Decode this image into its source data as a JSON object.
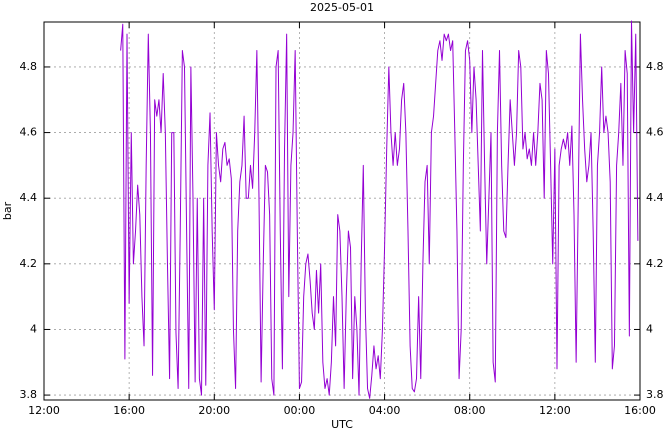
{
  "chart_data": {
    "type": "line",
    "title": "2025-05-01",
    "xlabel": "UTC",
    "ylabel": "bar",
    "color": "#9400d3",
    "grid": true,
    "xlim": [
      0,
      28
    ],
    "xticks": [
      {
        "value": 0,
        "label": "12:00"
      },
      {
        "value": 4,
        "label": "16:00"
      },
      {
        "value": 8,
        "label": "20:00"
      },
      {
        "value": 12,
        "label": "00:00"
      },
      {
        "value": 16,
        "label": "04:00"
      },
      {
        "value": 20,
        "label": "08:00"
      },
      {
        "value": 24,
        "label": "12:00"
      },
      {
        "value": 28,
        "label": "16:00"
      }
    ],
    "ylim": [
      3.785,
      4.937
    ],
    "yticks": [
      3.8,
      4,
      4.2,
      4.4,
      4.6,
      4.8
    ],
    "x": [
      3.6,
      3.7,
      3.8,
      3.9,
      4.0,
      4.1,
      4.2,
      4.3,
      4.4,
      4.5,
      4.6,
      4.7,
      4.8,
      4.9,
      5.0,
      5.1,
      5.2,
      5.3,
      5.4,
      5.5,
      5.6,
      5.7,
      5.8,
      5.9,
      6.0,
      6.1,
      6.2,
      6.3,
      6.4,
      6.5,
      6.6,
      6.7,
      6.8,
      6.9,
      7.0,
      7.1,
      7.2,
      7.3,
      7.4,
      7.5,
      7.6,
      7.7,
      7.8,
      7.9,
      8.0,
      8.1,
      8.2,
      8.3,
      8.4,
      8.5,
      8.6,
      8.7,
      8.8,
      8.9,
      9.0,
      9.1,
      9.2,
      9.3,
      9.4,
      9.5,
      9.6,
      9.7,
      9.8,
      9.9,
      10.0,
      10.1,
      10.2,
      10.3,
      10.4,
      10.5,
      10.6,
      10.7,
      10.8,
      10.9,
      11.0,
      11.1,
      11.2,
      11.3,
      11.4,
      11.5,
      11.6,
      11.7,
      11.8,
      11.9,
      12.0,
      12.1,
      12.2,
      12.3,
      12.4,
      12.5,
      12.6,
      12.7,
      12.8,
      12.9,
      13.0,
      13.1,
      13.2,
      13.3,
      13.4,
      13.5,
      13.6,
      13.7,
      13.8,
      13.9,
      14.0,
      14.1,
      14.2,
      14.3,
      14.4,
      14.5,
      14.6,
      14.7,
      14.8,
      14.9,
      15.0,
      15.1,
      15.2,
      15.3,
      15.4,
      15.5,
      15.6,
      15.7,
      15.8,
      15.9,
      16.0,
      16.1,
      16.2,
      16.3,
      16.4,
      16.5,
      16.6,
      16.7,
      16.8,
      16.9,
      17.0,
      17.1,
      17.2,
      17.3,
      17.4,
      17.5,
      17.6,
      17.7,
      17.8,
      17.9,
      18.0,
      18.1,
      18.2,
      18.3,
      18.4,
      18.5,
      18.6,
      18.7,
      18.8,
      18.9,
      19.0,
      19.1,
      19.2,
      19.3,
      19.4,
      19.5,
      19.6,
      19.7,
      19.8,
      19.9,
      20.0,
      20.1,
      20.2,
      20.3,
      20.4,
      20.5,
      20.6,
      20.7,
      20.8,
      20.9,
      21.0,
      21.1,
      21.2,
      21.3,
      21.4,
      21.5,
      21.6,
      21.7,
      21.8,
      21.9,
      22.0,
      22.1,
      22.2,
      22.3,
      22.4,
      22.5,
      22.6,
      22.7,
      22.8,
      22.9,
      23.0,
      23.1,
      23.2,
      23.3,
      23.4,
      23.5,
      23.6,
      23.7,
      23.8,
      23.9,
      24.0,
      24.1,
      24.2,
      24.3,
      24.4,
      24.5,
      24.6,
      24.7,
      24.8,
      24.9,
      25.0,
      25.1,
      25.2,
      25.3,
      25.4,
      25.5,
      25.6,
      25.7,
      25.8,
      25.9,
      26.0,
      26.1,
      26.2,
      26.3,
      26.4,
      26.5,
      26.6,
      26.7,
      26.8,
      26.9,
      27.0,
      27.1,
      27.2,
      27.3,
      27.4,
      27.5,
      27.6,
      27.7,
      27.8,
      27.9
    ],
    "values": [
      4.85,
      4.93,
      3.91,
      4.9,
      4.08,
      4.6,
      4.2,
      4.3,
      4.44,
      4.35,
      4.1,
      3.95,
      4.5,
      4.9,
      4.6,
      3.86,
      4.7,
      4.65,
      4.7,
      4.6,
      4.78,
      4.6,
      4.2,
      3.85,
      4.6,
      4.6,
      3.99,
      3.82,
      4.3,
      4.85,
      4.8,
      4.3,
      3.82,
      4.8,
      4.4,
      3.84,
      4.4,
      3.85,
      3.8,
      4.4,
      3.83,
      4.5,
      4.66,
      4.3,
      4.06,
      4.6,
      4.5,
      4.45,
      4.55,
      4.57,
      4.5,
      4.52,
      4.46,
      4.0,
      3.82,
      4.3,
      4.45,
      4.5,
      4.65,
      4.4,
      4.4,
      4.5,
      4.43,
      4.6,
      4.85,
      4.4,
      3.84,
      4.2,
      4.5,
      4.48,
      4.35,
      3.85,
      3.8,
      4.8,
      4.85,
      4.3,
      3.88,
      4.55,
      4.9,
      4.1,
      4.5,
      4.6,
      4.85,
      4.3,
      3.82,
      3.84,
      4.1,
      4.2,
      4.23,
      4.15,
      4.05,
      4.0,
      4.18,
      4.05,
      4.2,
      3.9,
      3.82,
      3.85,
      3.8,
      3.9,
      4.1,
      3.95,
      4.35,
      4.3,
      4.1,
      3.82,
      4.1,
      4.3,
      4.25,
      3.85,
      4.1,
      4.0,
      3.8,
      4.2,
      4.5,
      4.05,
      3.82,
      3.79,
      3.86,
      3.95,
      3.88,
      3.92,
      3.85,
      4.0,
      4.25,
      4.55,
      4.8,
      4.6,
      4.5,
      4.6,
      4.5,
      4.55,
      4.7,
      4.75,
      4.6,
      4.3,
      3.95,
      3.82,
      3.81,
      3.85,
      4.1,
      3.85,
      4.2,
      4.45,
      4.5,
      4.2,
      4.6,
      4.65,
      4.75,
      4.85,
      4.88,
      4.82,
      4.9,
      4.88,
      4.9,
      4.85,
      4.88,
      4.6,
      4.3,
      3.85,
      4.0,
      4.5,
      4.85,
      4.88,
      4.82,
      4.6,
      4.8,
      4.7,
      4.5,
      4.3,
      4.85,
      4.5,
      4.2,
      4.4,
      4.6,
      3.9,
      3.84,
      4.6,
      4.85,
      4.5,
      4.3,
      4.28,
      4.5,
      4.7,
      4.6,
      4.5,
      4.6,
      4.85,
      4.8,
      4.55,
      4.6,
      4.52,
      4.55,
      4.5,
      4.6,
      4.5,
      4.6,
      4.75,
      4.7,
      4.4,
      4.85,
      4.78,
      4.5,
      4.2,
      4.55,
      3.88,
      4.5,
      4.55,
      4.58,
      4.55,
      4.6,
      4.5,
      4.62,
      4.35,
      3.9,
      4.4,
      4.9,
      4.7,
      4.55,
      4.45,
      4.5,
      4.6,
      4.3,
      3.9,
      4.5,
      4.6,
      4.8,
      4.6,
      4.65,
      4.6,
      4.45,
      3.88,
      3.95,
      4.5,
      4.6,
      4.75,
      4.5,
      4.85,
      4.78,
      3.98,
      4.94,
      4.6,
      4.9,
      4.27
    ]
  }
}
